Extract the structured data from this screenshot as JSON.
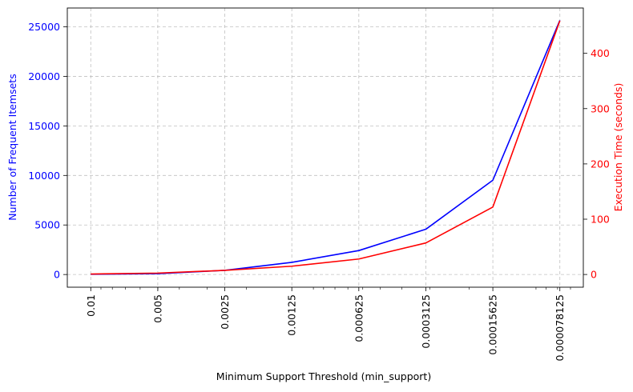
{
  "chart_data": {
    "type": "line",
    "xlabel": "Minimum Support Threshold (min_support)",
    "x_scale": "log",
    "x_reversed": true,
    "categories": [
      "0.01",
      "0.005",
      "0.0025",
      "0.00125",
      "0.000625",
      "0.0003125",
      "0.00015625",
      "0.000078125"
    ],
    "x_values": [
      0.01,
      0.005,
      0.0025,
      0.00125,
      0.000625,
      0.0003125,
      0.00015625,
      7.8125e-05
    ],
    "grid": true,
    "series": [
      {
        "axis": "left",
        "color": "#0000ff",
        "values": [
          30,
          90,
          420,
          1230,
          2420,
          4570,
          9520,
          25650
        ]
      },
      {
        "axis": "right",
        "color": "#ff0000",
        "values": [
          0.8,
          2.5,
          7.5,
          15,
          28,
          57,
          122,
          459
        ]
      }
    ],
    "left_axis": {
      "label": "Number of Frequent Itemsets",
      "color": "#0000ff",
      "ticks": [
        0,
        5000,
        10000,
        15000,
        20000,
        25000
      ],
      "ylim": [
        -1280,
        26900
      ]
    },
    "right_axis": {
      "label": "Execution Time (seconds)",
      "color": "#ff0000",
      "ticks": [
        0,
        100,
        200,
        300,
        400
      ],
      "ylim": [
        -23,
        482
      ]
    }
  }
}
